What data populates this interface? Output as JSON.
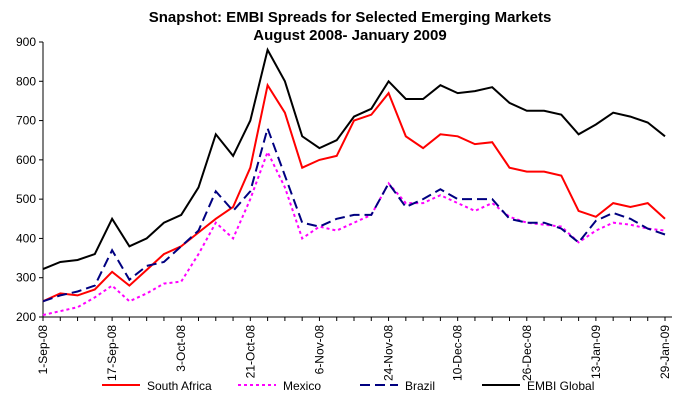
{
  "chart_data": {
    "type": "line",
    "title": "Snapshot: EMBI Spreads for Selected Emerging Markets",
    "subtitle": "August 2008- January 2009",
    "categories": [
      "1-Sep-08",
      null,
      null,
      null,
      "17-Sep-08",
      null,
      null,
      null,
      "3-Oct-08",
      null,
      null,
      null,
      "21-Oct-08",
      null,
      null,
      null,
      "6-Nov-08",
      null,
      null,
      null,
      "24-Nov-08",
      null,
      null,
      null,
      "10-Dec-08",
      null,
      null,
      null,
      "26-Dec-08",
      null,
      null,
      null,
      "13-Jan-09",
      null,
      null,
      null,
      "29-Jan-09"
    ],
    "ylim": [
      200,
      900
    ],
    "yticks": [
      200,
      300,
      400,
      500,
      600,
      700,
      800,
      900
    ],
    "legend": "bottom",
    "series": [
      {
        "name": "South Africa",
        "color": "#ff0000",
        "style": "solid",
        "values": [
          240,
          260,
          255,
          270,
          315,
          280,
          320,
          360,
          380,
          415,
          450,
          480,
          580,
          790,
          720,
          580,
          600,
          610,
          700,
          715,
          770,
          660,
          630,
          665,
          660,
          640,
          645,
          580,
          570,
          570,
          560,
          470,
          455,
          490,
          480,
          490,
          450
        ]
      },
      {
        "name": "Mexico",
        "color": "#ff00ff",
        "style": "dotted",
        "values": [
          205,
          215,
          225,
          250,
          280,
          240,
          260,
          285,
          290,
          360,
          440,
          400,
          500,
          620,
          530,
          400,
          430,
          420,
          440,
          460,
          540,
          490,
          490,
          510,
          490,
          470,
          490,
          455,
          440,
          435,
          430,
          390,
          420,
          440,
          435,
          425,
          420
        ]
      },
      {
        "name": "Brazil",
        "color": "#000080",
        "style": "dashed",
        "values": [
          240,
          255,
          265,
          280,
          370,
          295,
          330,
          340,
          380,
          420,
          520,
          470,
          520,
          680,
          560,
          440,
          430,
          450,
          460,
          460,
          540,
          480,
          500,
          525,
          500,
          500,
          500,
          450,
          440,
          440,
          425,
          390,
          445,
          465,
          450,
          425,
          410
        ]
      },
      {
        "name": "EMBI Global",
        "color": "#000000",
        "style": "solid",
        "values": [
          322,
          340,
          345,
          360,
          450,
          380,
          400,
          440,
          460,
          530,
          665,
          610,
          700,
          880,
          800,
          660,
          630,
          650,
          710,
          730,
          800,
          755,
          755,
          790,
          770,
          775,
          785,
          745,
          725,
          725,
          715,
          665,
          690,
          720,
          710,
          695,
          660
        ]
      }
    ]
  }
}
